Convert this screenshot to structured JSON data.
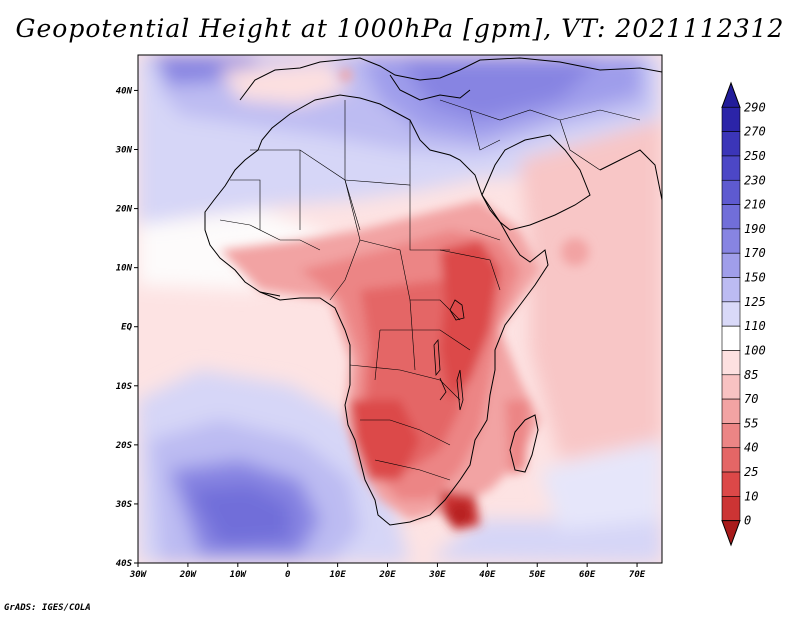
{
  "title": "Geopotential Height at 1000hPa [gpm], VT: 2021112312",
  "credit": "GrADS: IGES/COLA",
  "map": {
    "lon_range": [
      -30,
      75
    ],
    "lat_range": [
      -40,
      46
    ],
    "x_ticks": [
      {
        "lon": -30,
        "label": "30W"
      },
      {
        "lon": -20,
        "label": "20W"
      },
      {
        "lon": -10,
        "label": "10W"
      },
      {
        "lon": 0,
        "label": "0"
      },
      {
        "lon": 10,
        "label": "10E"
      },
      {
        "lon": 20,
        "label": "20E"
      },
      {
        "lon": 30,
        "label": "30E"
      },
      {
        "lon": 40,
        "label": "40E"
      },
      {
        "lon": 50,
        "label": "50E"
      },
      {
        "lon": 60,
        "label": "60E"
      },
      {
        "lon": 70,
        "label": "70E"
      }
    ],
    "y_ticks": [
      {
        "lat": 40,
        "label": "40N"
      },
      {
        "lat": 30,
        "label": "30N"
      },
      {
        "lat": 20,
        "label": "20N"
      },
      {
        "lat": 10,
        "label": "10N"
      },
      {
        "lat": 0,
        "label": "EQ"
      },
      {
        "lat": -10,
        "label": "10S"
      },
      {
        "lat": -20,
        "label": "20S"
      },
      {
        "lat": -30,
        "label": "30S"
      },
      {
        "lat": -40,
        "label": "40S"
      }
    ]
  },
  "colorbar": {
    "levels": [
      {
        "label": "290",
        "color": "#2b24a8"
      },
      {
        "label": "270",
        "color": "#3b35b8"
      },
      {
        "label": "250",
        "color": "#4c47c6"
      },
      {
        "label": "230",
        "color": "#5e5ad0"
      },
      {
        "label": "210",
        "color": "#716ed9"
      },
      {
        "label": "190",
        "color": "#8784e2"
      },
      {
        "label": "170",
        "color": "#a09eea"
      },
      {
        "label": "150",
        "color": "#bcbbf2"
      },
      {
        "label": "125",
        "color": "#d9d9f8"
      },
      {
        "label": "110",
        "color": "#ffffff"
      },
      {
        "label": "100",
        "color": "#fde0e0"
      },
      {
        "label": "85",
        "color": "#f8c2c2"
      },
      {
        "label": "70",
        "color": "#f2a3a3"
      },
      {
        "label": "55",
        "color": "#ec8585"
      },
      {
        "label": "40",
        "color": "#e46666"
      },
      {
        "label": "25",
        "color": "#dc4848"
      },
      {
        "label": "10",
        "color": "#cc3434"
      },
      {
        "label": "0",
        "color": "#b82424"
      }
    ],
    "top_arrow_color": "#221c9a",
    "bottom_arrow_color": "#a81b1b"
  }
}
